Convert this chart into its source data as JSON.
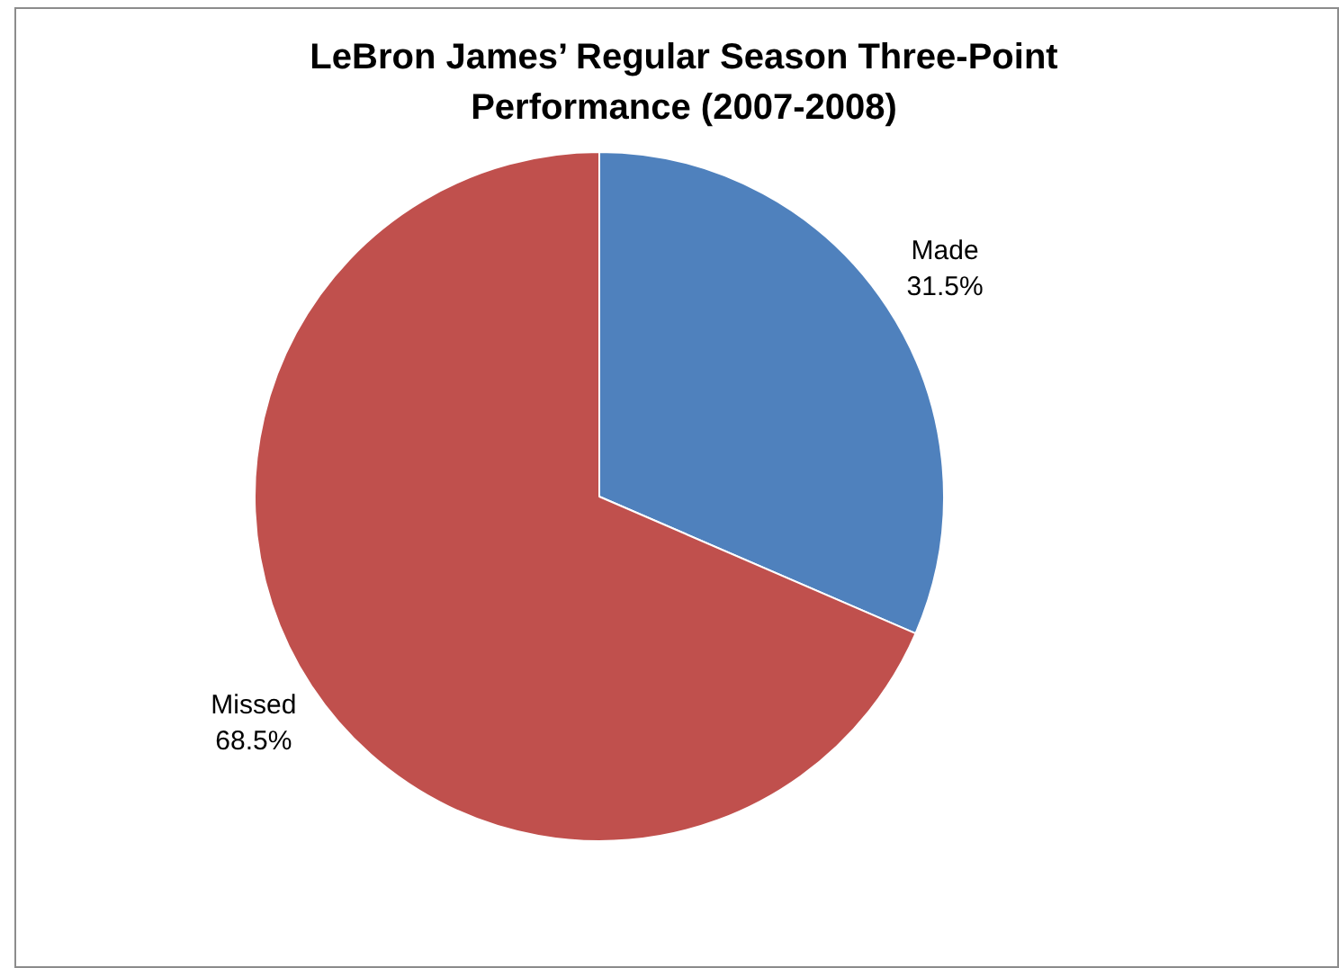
{
  "chart_data": {
    "type": "pie",
    "title": "LeBron James’ Regular Season Three-Point Performance (2007-2008)",
    "categories": [
      "Made",
      "Missed"
    ],
    "values": [
      31.5,
      68.5
    ],
    "value_labels": [
      "31.5%",
      "68.5%"
    ],
    "colors": [
      "#4f81bd",
      "#c0504d"
    ],
    "legend": false
  }
}
